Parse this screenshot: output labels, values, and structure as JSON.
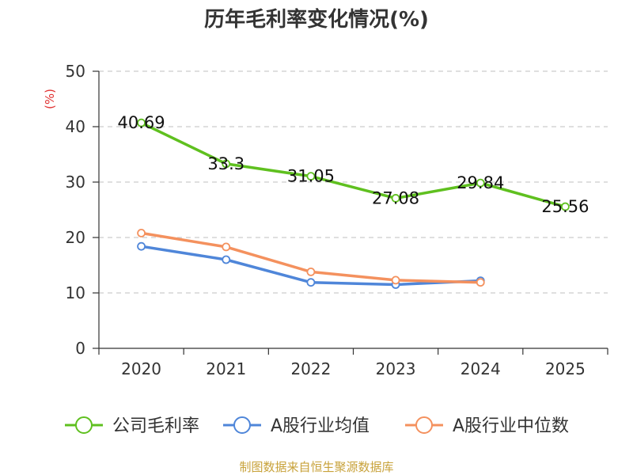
{
  "chart_data": {
    "type": "line",
    "title": "历年毛利率变化情况(%)",
    "ylabel": "(%)",
    "xlabel": "",
    "categories": [
      "2020",
      "2021",
      "2022",
      "2023",
      "2024",
      "2025"
    ],
    "ylim": [
      0,
      50
    ],
    "yticks": [
      "0",
      "10",
      "20",
      "30",
      "40",
      "50"
    ],
    "grid": true,
    "legend_position": "bottom",
    "series": [
      {
        "name": "公司毛利率",
        "color": "#5fc01f",
        "values": [
          40.69,
          33.3,
          31.05,
          27.08,
          29.84,
          25.56
        ],
        "labels": [
          "40.69",
          "33.3",
          "31.05",
          "27.08",
          "29.84",
          "25.56"
        ],
        "show_labels": true
      },
      {
        "name": "A股行业均值",
        "color": "#4f86d9",
        "values": [
          18.4,
          16.0,
          11.9,
          11.5,
          12.2,
          null
        ],
        "show_labels": false
      },
      {
        "name": "A股行业中位数",
        "color": "#f4915e",
        "values": [
          20.8,
          18.3,
          13.8,
          12.3,
          11.9,
          null
        ],
        "show_labels": false
      }
    ],
    "source": "制图数据来自恒生聚源数据库",
    "colors": {
      "axis": "#333333",
      "grid": "#cccccc",
      "ylabel": "#e03030",
      "source": "#c8a23a"
    }
  }
}
